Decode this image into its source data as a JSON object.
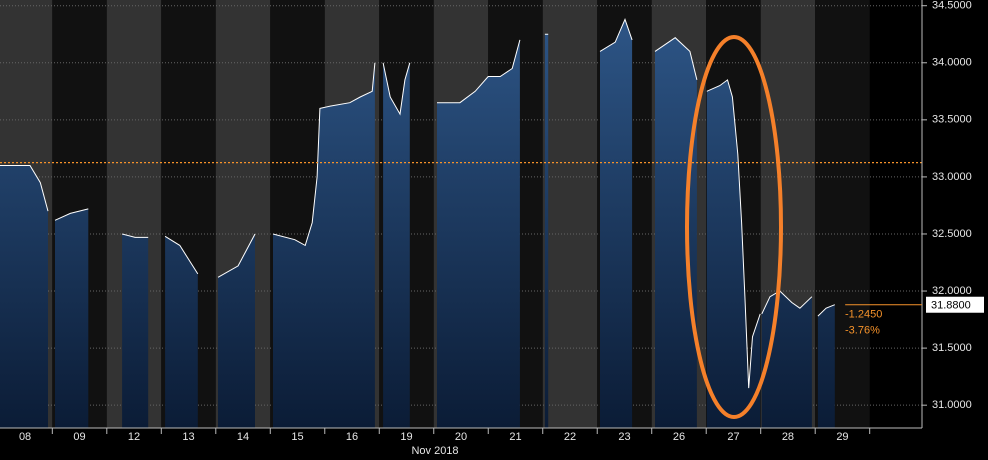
{
  "chart_data": {
    "type": "area",
    "x_axis_label": "Nov 2018",
    "xlim": [
      -0.46,
      16.46
    ],
    "xticks": [
      {
        "value": 0,
        "label": "08"
      },
      {
        "value": 1,
        "label": "09"
      },
      {
        "value": 2,
        "label": "12"
      },
      {
        "value": 3,
        "label": "13"
      },
      {
        "value": 4,
        "label": "14"
      },
      {
        "value": 5,
        "label": "15"
      },
      {
        "value": 6,
        "label": "16"
      },
      {
        "value": 7,
        "label": "19"
      },
      {
        "value": 8,
        "label": "20"
      },
      {
        "value": 9,
        "label": "21"
      },
      {
        "value": 10,
        "label": "22"
      },
      {
        "value": 11,
        "label": "23"
      },
      {
        "value": 12,
        "label": "26"
      },
      {
        "value": 13,
        "label": "27"
      },
      {
        "value": 14,
        "label": "28"
      },
      {
        "value": 15,
        "label": "29"
      }
    ],
    "ylim": [
      30.8,
      34.55
    ],
    "yticks": [
      {
        "value": 31,
        "label": "31.0000"
      },
      {
        "value": 31.5,
        "label": "31.5000"
      },
      {
        "value": 32,
        "label": "32.0000"
      },
      {
        "value": 32.5,
        "label": "32.5000"
      },
      {
        "value": 33,
        "label": "33.0000"
      },
      {
        "value": 33.5,
        "label": "33.5000"
      },
      {
        "value": 34,
        "label": "34.0000"
      },
      {
        "value": 34.5,
        "label": "34.5000"
      }
    ],
    "grid": true,
    "reference_line": 33.125,
    "reference_color": "#f5922a",
    "last": {
      "value": 31.88,
      "label": "31.8800"
    },
    "change": "-1.2450",
    "change_pct": "-3.76%",
    "series": [
      {
        "color": "#ffffff",
        "x": [
          -0.46,
          -0.28,
          0.09,
          0.28,
          0.42,
          null,
          0.55,
          0.83,
          1.16,
          null,
          1.78,
          2.02,
          2.26,
          null,
          2.57,
          2.84,
          3.17,
          null,
          3.54,
          3.91,
          4.22,
          null,
          4.55,
          4.95,
          5.14,
          5.27,
          5.36,
          5.41,
          5.6,
          5.96,
          6.15,
          6.37,
          6.42,
          null,
          6.57,
          6.7,
          6.88,
          6.97,
          7.06,
          null,
          7.56,
          7.98,
          8.26,
          8.5,
          8.72,
          8.94,
          9.08,
          null,
          9.54,
          9.6,
          null,
          10.55,
          10.83,
          11.01,
          11.14,
          null,
          11.56,
          11.93,
          12.2,
          12.33,
          null,
          12.51,
          12.75,
          12.89,
          12.98,
          13.08,
          13.15,
          13.21,
          13.28,
          13.35,
          13.49,
          null,
          13.52,
          13.67,
          13.85,
          14.07,
          14.22,
          14.44,
          null,
          14.55,
          14.7,
          14.86
        ],
        "values": [
          33.1,
          33.1,
          33.1,
          32.95,
          32.7,
          null,
          32.62,
          32.68,
          32.72,
          null,
          32.5,
          32.47,
          32.47,
          null,
          32.48,
          32.4,
          32.15,
          null,
          32.12,
          32.22,
          32.5,
          null,
          32.5,
          32.45,
          32.4,
          32.6,
          33.0,
          33.6,
          33.62,
          33.65,
          33.7,
          33.75,
          34.0,
          null,
          34.0,
          33.7,
          33.55,
          33.85,
          34.0,
          null,
          33.65,
          33.65,
          33.75,
          33.88,
          33.88,
          33.95,
          34.2,
          null,
          34.25,
          34.25,
          null,
          34.1,
          34.18,
          34.38,
          34.2,
          null,
          34.1,
          34.22,
          34.1,
          33.85,
          null,
          33.75,
          33.8,
          33.85,
          33.7,
          33.2,
          32.6,
          31.95,
          31.15,
          31.6,
          31.8,
          null,
          31.8,
          31.95,
          32.0,
          31.9,
          31.85,
          31.95,
          null,
          31.78,
          31.85,
          31.88
        ]
      }
    ]
  }
}
